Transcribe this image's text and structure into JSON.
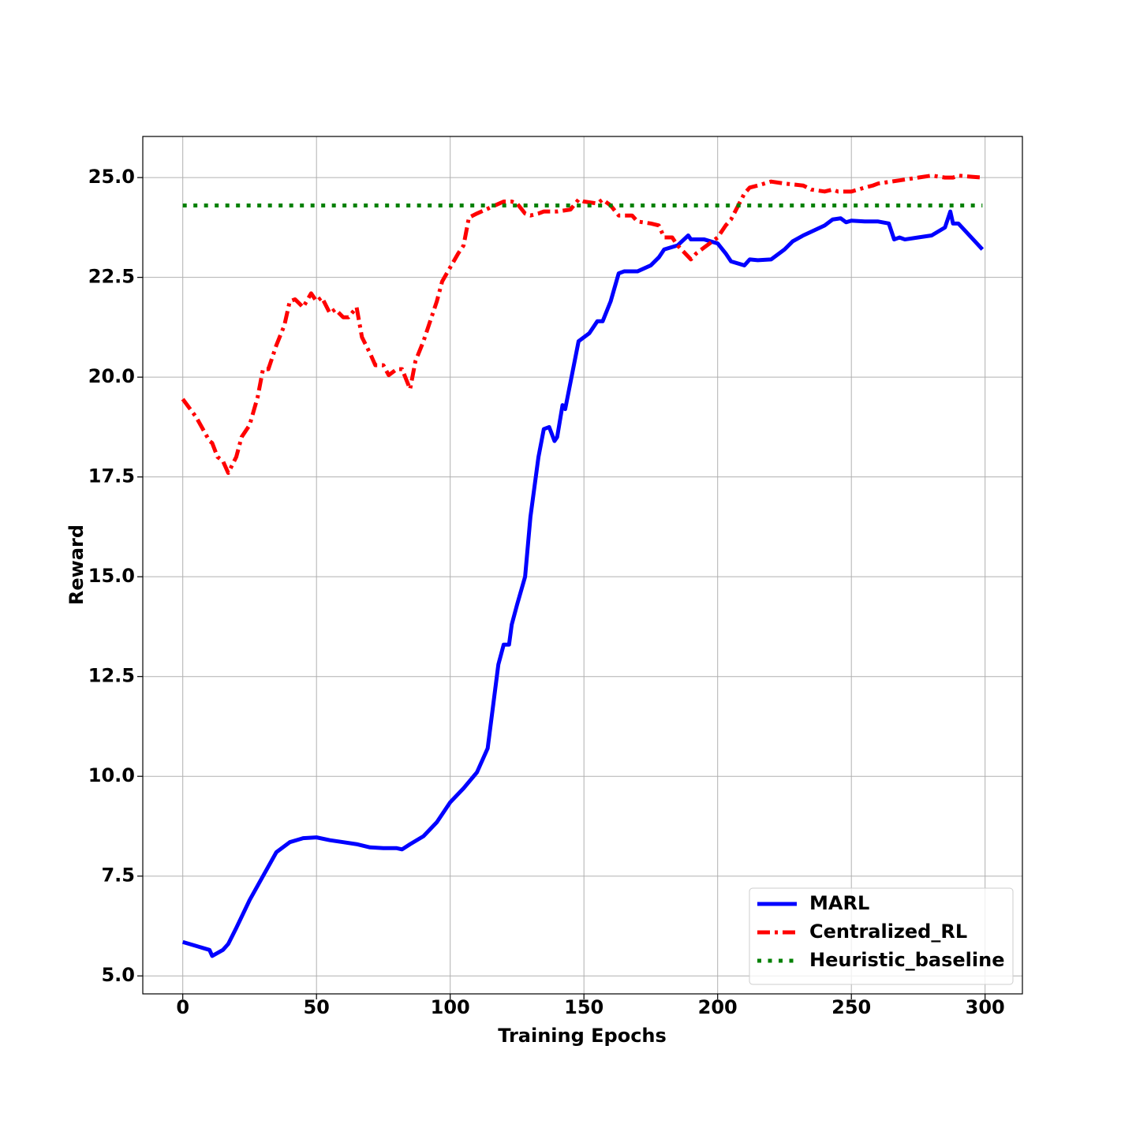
{
  "chart_data": {
    "type": "line",
    "xlabel": "Training Epochs",
    "ylabel": "Reward",
    "xlim": [
      -14.95,
      313.95
    ],
    "ylim": [
      4.55,
      26.03
    ],
    "xticks": [
      0,
      50,
      100,
      150,
      200,
      250,
      300
    ],
    "yticks": [
      {
        "value": 5,
        "label": "5.0"
      },
      {
        "value": 7.5,
        "label": "7.5"
      },
      {
        "value": 10,
        "label": "10.0"
      },
      {
        "value": 12.5,
        "label": "12.5"
      },
      {
        "value": 15,
        "label": "15.0"
      },
      {
        "value": 17.5,
        "label": "17.5"
      },
      {
        "value": 20,
        "label": "20.0"
      },
      {
        "value": 22.5,
        "label": "22.5"
      },
      {
        "value": 25,
        "label": "25.0"
      }
    ],
    "grid": true,
    "legend": "lower right",
    "series": [
      {
        "name": "MARL",
        "color": "#0000ff",
        "linestyle": "solid",
        "x": [
          0,
          5,
          10,
          11,
          15,
          17,
          20,
          25,
          30,
          35,
          40,
          45,
          50,
          55,
          60,
          65,
          70,
          75,
          80,
          82,
          85,
          90,
          95,
          100,
          105,
          110,
          114,
          118,
          120,
          122,
          123,
          125,
          128,
          130,
          133,
          135,
          137,
          139,
          140,
          142,
          143,
          148,
          152,
          155,
          157,
          160,
          163,
          165,
          170,
          175,
          178,
          180,
          185,
          189,
          190,
          195,
          200,
          203,
          205,
          210,
          212,
          215,
          220,
          225,
          228,
          232,
          240,
          243,
          246,
          248,
          250,
          255,
          260,
          264,
          266,
          268,
          270,
          275,
          280,
          285,
          287,
          288,
          290,
          299
        ],
        "values": [
          5.85,
          5.75,
          5.65,
          5.5,
          5.65,
          5.8,
          6.2,
          6.9,
          7.5,
          8.1,
          8.35,
          8.45,
          8.47,
          8.4,
          8.35,
          8.3,
          8.22,
          8.2,
          8.2,
          8.17,
          8.3,
          8.5,
          8.85,
          9.35,
          9.7,
          10.1,
          10.7,
          12.8,
          13.3,
          13.3,
          13.8,
          14.3,
          15.0,
          16.5,
          18.0,
          18.7,
          18.75,
          18.4,
          18.5,
          19.3,
          19.2,
          20.9,
          21.1,
          21.4,
          21.4,
          21.9,
          22.6,
          22.65,
          22.65,
          22.8,
          23.0,
          23.2,
          23.3,
          23.55,
          23.45,
          23.45,
          23.35,
          23.1,
          22.9,
          22.8,
          22.95,
          22.93,
          22.95,
          23.2,
          23.4,
          23.55,
          23.8,
          23.95,
          23.98,
          23.88,
          23.92,
          23.9,
          23.9,
          23.85,
          23.45,
          23.5,
          23.45,
          23.5,
          23.55,
          23.75,
          24.15,
          23.85,
          23.85,
          23.2
        ]
      },
      {
        "name": "Centralized_RL",
        "color": "#ff0000",
        "linestyle": "dashdot",
        "x": [
          0,
          5,
          10,
          11,
          13,
          15,
          17,
          20,
          22,
          25,
          28,
          30,
          32,
          35,
          38,
          40,
          42,
          45,
          48,
          50,
          52,
          55,
          57,
          60,
          62,
          65,
          67,
          70,
          72,
          75,
          77,
          80,
          82,
          85,
          87,
          90,
          92,
          95,
          97,
          100,
          103,
          105,
          107,
          110,
          115,
          120,
          123,
          125,
          128,
          130,
          133,
          135,
          140,
          145,
          148,
          150,
          155,
          157,
          160,
          163,
          168,
          170,
          175,
          178,
          180,
          183,
          185,
          190,
          192,
          195,
          200,
          203,
          205,
          210,
          212,
          215,
          220,
          225,
          228,
          232,
          235,
          240,
          243,
          245,
          250,
          255,
          258,
          260,
          265,
          270,
          275,
          280,
          285,
          288,
          290,
          295,
          299
        ],
        "values": [
          19.45,
          19.0,
          18.4,
          18.35,
          18.0,
          17.9,
          17.6,
          18.0,
          18.5,
          18.8,
          19.5,
          20.2,
          20.2,
          20.8,
          21.3,
          21.9,
          21.95,
          21.75,
          22.1,
          21.9,
          22.0,
          21.6,
          21.7,
          21.5,
          21.5,
          21.75,
          21.0,
          20.6,
          20.3,
          20.3,
          20.05,
          20.2,
          20.2,
          19.7,
          20.4,
          20.9,
          21.3,
          21.9,
          22.4,
          22.75,
          23.1,
          23.3,
          24.0,
          24.1,
          24.25,
          24.4,
          24.4,
          24.35,
          24.1,
          24.05,
          24.1,
          24.15,
          24.15,
          24.2,
          24.45,
          24.4,
          24.35,
          24.45,
          24.3,
          24.05,
          24.05,
          23.9,
          23.85,
          23.8,
          23.5,
          23.5,
          23.3,
          22.95,
          23.1,
          23.25,
          23.5,
          23.8,
          23.95,
          24.6,
          24.75,
          24.8,
          24.9,
          24.85,
          24.83,
          24.8,
          24.7,
          24.65,
          24.7,
          24.65,
          24.65,
          24.75,
          24.8,
          24.85,
          24.9,
          24.95,
          25.0,
          25.05,
          25.0,
          25.0,
          25.05,
          25.02,
          25.0
        ]
      },
      {
        "name": "Heuristic_baseline",
        "color": "#008000",
        "linestyle": "dotted",
        "x": [
          0,
          299
        ],
        "values": [
          24.3,
          24.3
        ]
      }
    ]
  }
}
